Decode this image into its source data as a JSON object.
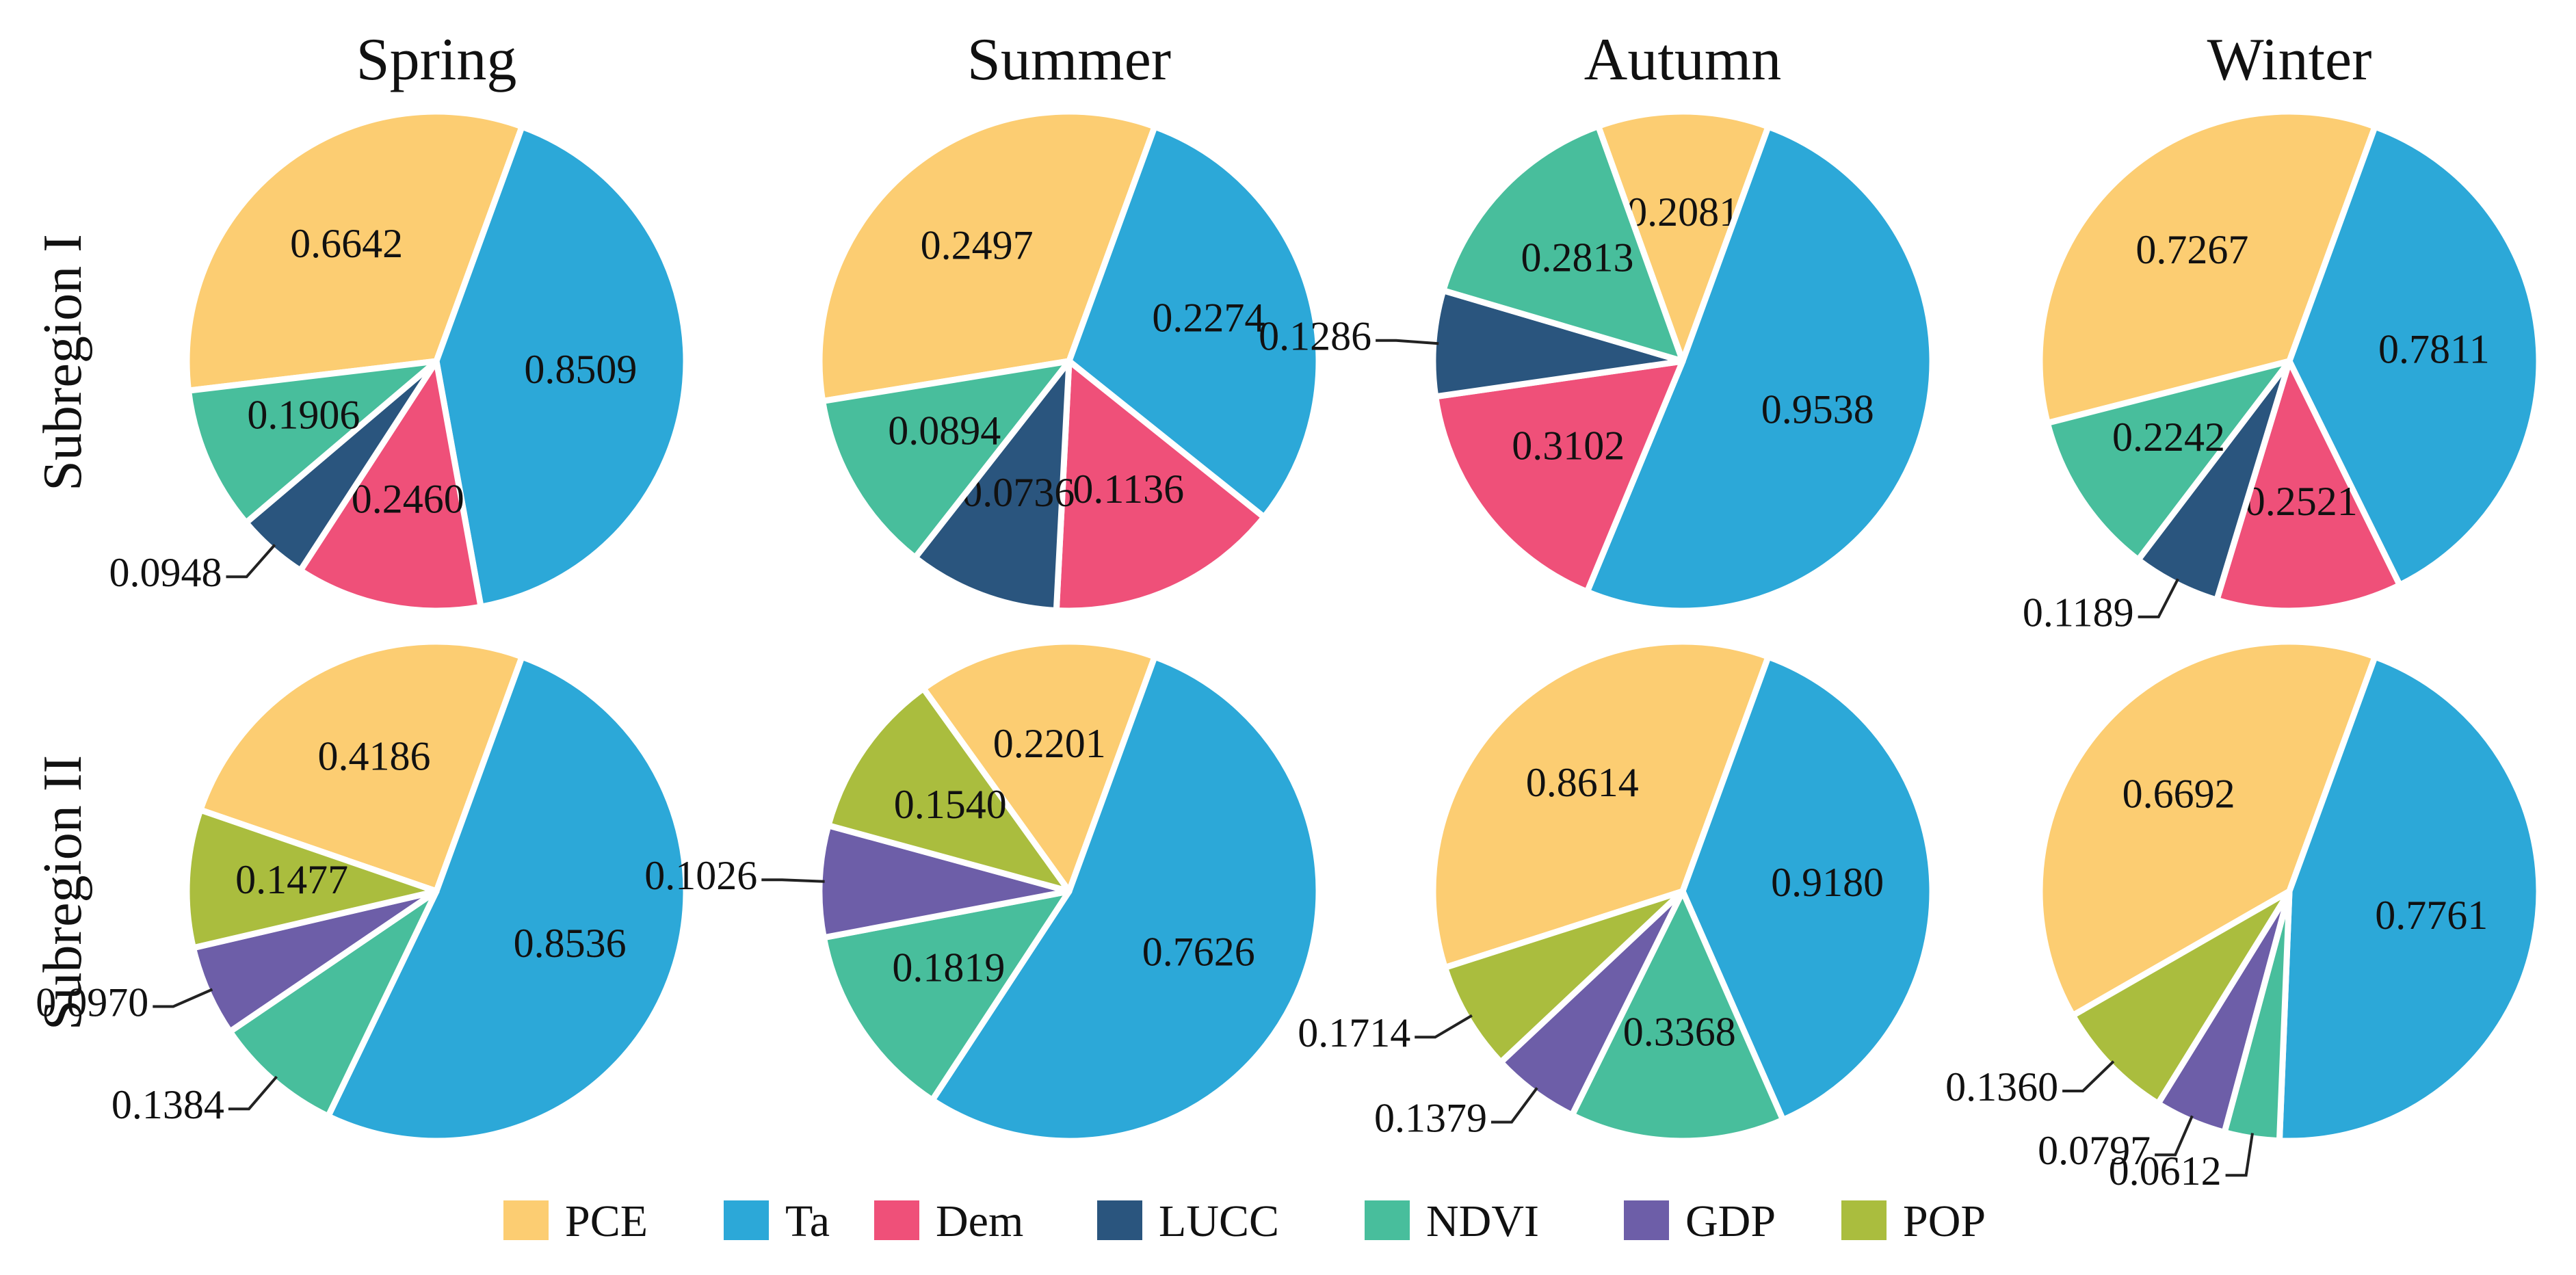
{
  "chart_data": {
    "type": "pie",
    "column_titles": [
      "Spring",
      "Summer",
      "Autumn",
      "Winter"
    ],
    "row_titles": [
      "Subregion I",
      "Subregion II"
    ],
    "legend": [
      {
        "name": "PCE",
        "color": "#FCCD72"
      },
      {
        "name": "Ta",
        "color": "#2CA8D8"
      },
      {
        "name": "Dem",
        "color": "#EF5079"
      },
      {
        "name": "LUCC",
        "color": "#2A557E"
      },
      {
        "name": "NDVI",
        "color": "#48BE9C"
      },
      {
        "name": "GDP",
        "color": "#6D5EA8"
      },
      {
        "name": "POP",
        "color": "#AABD3E"
      }
    ],
    "pies": [
      {
        "row": "Subregion I",
        "season": "Spring",
        "slices": [
          {
            "factor": "PCE",
            "value": 0.6642,
            "label": "0.6642"
          },
          {
            "factor": "Ta",
            "value": 0.8509,
            "label": "0.8509"
          },
          {
            "factor": "Dem",
            "value": 0.246,
            "label": "0.2460"
          },
          {
            "factor": "LUCC",
            "value": 0.0948,
            "label": "0.0948"
          },
          {
            "factor": "NDVI",
            "value": 0.1906,
            "label": "0.1906"
          }
        ]
      },
      {
        "row": "Subregion I",
        "season": "Summer",
        "slices": [
          {
            "factor": "PCE",
            "value": 0.2497,
            "label": "0.2497"
          },
          {
            "factor": "Ta",
            "value": 0.2274,
            "label": "0.2274"
          },
          {
            "factor": "Dem",
            "value": 0.1136,
            "label": "0.1136"
          },
          {
            "factor": "LUCC",
            "value": 0.0736,
            "label": "0.0736"
          },
          {
            "factor": "NDVI",
            "value": 0.0894,
            "label": "0.0894"
          }
        ]
      },
      {
        "row": "Subregion I",
        "season": "Autumn",
        "slices": [
          {
            "factor": "PCE",
            "value": 0.2081,
            "label": "0.2081"
          },
          {
            "factor": "Ta",
            "value": 0.9538,
            "label": "0.9538"
          },
          {
            "factor": "Dem",
            "value": 0.3102,
            "label": "0.3102"
          },
          {
            "factor": "LUCC",
            "value": 0.1286,
            "label": "0.1286"
          },
          {
            "factor": "NDVI",
            "value": 0.2813,
            "label": "0.2813"
          }
        ]
      },
      {
        "row": "Subregion I",
        "season": "Winter",
        "slices": [
          {
            "factor": "PCE",
            "value": 0.7267,
            "label": "0.7267"
          },
          {
            "factor": "Ta",
            "value": 0.7811,
            "label": "0.7811"
          },
          {
            "factor": "Dem",
            "value": 0.2521,
            "label": "0.2521"
          },
          {
            "factor": "LUCC",
            "value": 0.1189,
            "label": "0.1189"
          },
          {
            "factor": "NDVI",
            "value": 0.2242,
            "label": "0.2242"
          }
        ]
      },
      {
        "row": "Subregion II",
        "season": "Spring",
        "slices": [
          {
            "factor": "PCE",
            "value": 0.4186,
            "label": "0.4186"
          },
          {
            "factor": "Ta",
            "value": 0.8536,
            "label": "0.8536"
          },
          {
            "factor": "NDVI",
            "value": 0.1384,
            "label": "0.1384"
          },
          {
            "factor": "GDP",
            "value": 0.097,
            "label": "0.0970"
          },
          {
            "factor": "POP",
            "value": 0.1477,
            "label": "0.1477"
          }
        ]
      },
      {
        "row": "Subregion II",
        "season": "Summer",
        "slices": [
          {
            "factor": "PCE",
            "value": 0.2201,
            "label": "0.2201"
          },
          {
            "factor": "Ta",
            "value": 0.7626,
            "label": "0.7626"
          },
          {
            "factor": "NDVI",
            "value": 0.1819,
            "label": "0.1819"
          },
          {
            "factor": "GDP",
            "value": 0.1026,
            "label": "0.1026"
          },
          {
            "factor": "POP",
            "value": 0.154,
            "label": "0.1540"
          }
        ]
      },
      {
        "row": "Subregion II",
        "season": "Autumn",
        "slices": [
          {
            "factor": "PCE",
            "value": 0.8614,
            "label": "0.8614"
          },
          {
            "factor": "Ta",
            "value": 0.918,
            "label": "0.9180"
          },
          {
            "factor": "NDVI",
            "value": 0.3368,
            "label": "0.3368"
          },
          {
            "factor": "GDP",
            "value": 0.1379,
            "label": "0.1379"
          },
          {
            "factor": "POP",
            "value": 0.1714,
            "label": "0.1714"
          }
        ]
      },
      {
        "row": "Subregion II",
        "season": "Winter",
        "slices": [
          {
            "factor": "PCE",
            "value": 0.6692,
            "label": "0.6692"
          },
          {
            "factor": "Ta",
            "value": 0.7761,
            "label": "0.7761"
          },
          {
            "factor": "NDVI",
            "value": 0.0612,
            "label": "0.0612"
          },
          {
            "factor": "GDP",
            "value": 0.0797,
            "label": "0.0797"
          },
          {
            "factor": "POP",
            "value": 0.136,
            "label": "0.1360"
          }
        ]
      }
    ]
  }
}
